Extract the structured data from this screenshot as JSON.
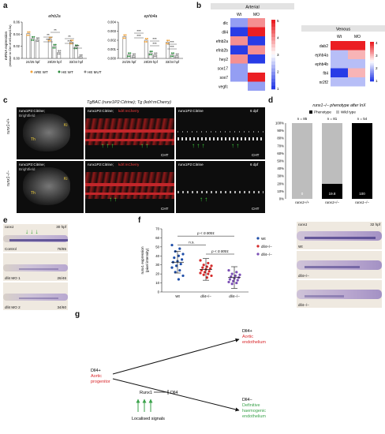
{
  "panels": {
    "a": "a",
    "b": "b",
    "c": "c",
    "d": "d",
    "e": "e",
    "f": "f",
    "g": "g"
  },
  "panel_a": {
    "y_label_line1": "mRNA expression",
    "y_label_line2": "(relative to Ctrl of ef1α/rpl13α)",
    "charts": [
      {
        "title": "efnb2a",
        "yticks": [
          "0.00",
          "0.02",
          "0.04",
          "0.06"
        ],
        "groups": [
          "24/25 hpf",
          "28/29 hpf",
          "33/34 hpf"
        ],
        "sig": [
          "**",
          "***",
          "**",
          "**",
          "***",
          "***"
        ]
      },
      {
        "title": "ephb4a",
        "yticks": [
          "0.000",
          "0.001",
          "0.002",
          "0.003",
          "0.004"
        ],
        "groups": [
          "24/25 hpf",
          "28/29 hpf",
          "33/34 hpf"
        ],
        "sig": [
          "***",
          "***",
          "***",
          "***",
          "***",
          "***"
        ]
      }
    ],
    "legend": [
      "ARE WT",
      "HE WT",
      "HE MUT"
    ],
    "colors": {
      "are": "#f2a33a",
      "he_wt": "#2e8b3e",
      "he_mut": "#8a8a8a"
    }
  },
  "panel_b": {
    "arterial_title": "Arterial",
    "venous_title": "Venous",
    "cols": [
      "Wt",
      "MO"
    ],
    "arterial_genes": [
      "dlc",
      "dll4",
      "efnb2a",
      "efnb2b",
      "hey2",
      "sox17",
      "sox7",
      "vegfc"
    ],
    "venous_genes": [
      "dab2",
      "ephb4a",
      "ephb4b",
      "flt4",
      "nr2f2"
    ],
    "arterial_scale": [
      "5",
      "4",
      "3",
      "2",
      "1"
    ],
    "venous_scale": [
      "4",
      "3",
      "2",
      "1"
    ]
  },
  "panel_c": {
    "title": "TgBAC (runx1P2:Citrine); Tg (kdrl:mCherry)",
    "row_labels": [
      "runx1+/+",
      "runx1−/−"
    ],
    "left_label_line1": "runx1P2:Citrine;",
    "left_label_line2": "Brightfield",
    "mid_label_1": "runx1P2:Citrine;",
    "mid_label_2": "kdrl:mCherry",
    "right_label": "runx1P2:Citrine",
    "age": "6 dpf",
    "cht": "CHT",
    "th": "Th",
    "ki": "Ki"
  },
  "panel_d": {
    "title": "runx1−/− phenotype after InX",
    "legend": [
      "Phenotype",
      "Wild type"
    ],
    "yticks": [
      "0%",
      "10%",
      "20%",
      "30%",
      "40%",
      "50%",
      "60%",
      "70%",
      "80%",
      "90%",
      "100%"
    ],
    "categories": [
      "runx1+/+",
      "runx1+/−",
      "runx1−/−"
    ],
    "n_labels": [
      "n = 85",
      "n = 81",
      "n = 54"
    ],
    "value_labels": [
      "0",
      "19.8",
      "100"
    ]
  },
  "panel_e": {
    "gene": "runx1",
    "age": "30 hpf",
    "rows": [
      {
        "label": "Control",
        "count": "78/85"
      },
      {
        "label": "dll4 MO 1",
        "count": "26/46"
      },
      {
        "label": "dll4 MO 2",
        "count": "34/60"
      }
    ]
  },
  "panel_f": {
    "ylabel_line1": "runx1 expression",
    "ylabel_line2": "(pixel intensity)",
    "yticks": [
      "0",
      "10",
      "20",
      "30",
      "40",
      "50",
      "60",
      "70"
    ],
    "categories": [
      "Wt",
      "dll4+/−",
      "dll4−/−"
    ],
    "legend": [
      "Wt",
      "dll4+/−",
      "dll4−/−"
    ],
    "p1": "p < 0.0001",
    "p2": "p < 0.0001",
    "ns": "n.s.",
    "colors": [
      "#1f4ea8",
      "#d42a2a",
      "#7b4fb5"
    ]
  },
  "panel_f_right": {
    "gene": "runx1",
    "age": "32 hpf",
    "labels": [
      "Wt",
      "dll4+/−",
      "dll4−/−"
    ]
  },
  "panel_g": {
    "start_line1": "Dll4+",
    "start_line2": "Aortic",
    "start_line3": "progenitor",
    "top_line1": "Dll4+",
    "top_line2": "Aortic",
    "top_line3": "endothelium",
    "bottom_line1": "Dll4−",
    "bottom_line2": "Definitive",
    "bottom_line3": "haemogenic",
    "bottom_line4": "endothelium",
    "runx1": "Runx1",
    "dll4": "Dll4",
    "signals": "Localised signals",
    "colors": {
      "red": "#d8262a",
      "green": "#3aa24a"
    }
  },
  "chart_data": [
    {
      "type": "bar",
      "title": "efnb2a",
      "categories": [
        "24/25 hpf",
        "28/29 hpf",
        "33/34 hpf"
      ],
      "series": [
        {
          "name": "ARE WT",
          "values": [
            0.041,
            0.032,
            0.027
          ]
        },
        {
          "name": "HE WT",
          "values": [
            0.033,
            0.02,
            0.019
          ]
        },
        {
          "name": "HE MUT",
          "values": [
            0.031,
            0.01,
            0.003
          ]
        }
      ],
      "ylim": [
        0,
        0.06
      ]
    },
    {
      "type": "bar",
      "title": "ephb4a",
      "categories": [
        "24/25 hpf",
        "28/29 hpf",
        "33/34 hpf"
      ],
      "series": [
        {
          "name": "ARE WT",
          "values": [
            0.0024,
            0.002,
            0.0018
          ]
        },
        {
          "name": "HE WT",
          "values": [
            0.0004,
            0.0006,
            0.0004
          ]
        },
        {
          "name": "HE MUT",
          "values": [
            0.0003,
            0.0004,
            0.0003
          ]
        }
      ],
      "ylim": [
        0,
        0.004
      ]
    },
    {
      "type": "heatmap",
      "title": "Arterial",
      "rows": [
        "dlc",
        "dll4",
        "efnb2a",
        "efnb2b",
        "hey2",
        "sox17",
        "sox7",
        "vegfc"
      ],
      "cols": [
        "Wt",
        "MO"
      ],
      "values": [
        [
          2,
          4
        ],
        [
          1,
          5
        ],
        [
          4,
          1
        ],
        [
          1,
          4
        ],
        [
          4,
          1
        ],
        [
          2,
          3
        ],
        [
          2,
          5
        ],
        [
          3,
          2
        ]
      ]
    },
    {
      "type": "heatmap",
      "title": "Venous",
      "rows": [
        "dab2",
        "ephb4a",
        "ephb4b",
        "flt4",
        "nr2f2"
      ],
      "cols": [
        "Wt",
        "MO"
      ],
      "values": [
        [
          4,
          4
        ],
        [
          2,
          3
        ],
        [
          2,
          2
        ],
        [
          1,
          3
        ],
        [
          2,
          2
        ]
      ]
    },
    {
      "type": "bar",
      "title": "runx1−/− phenotype after InX",
      "categories": [
        "runx1+/+",
        "runx1+/−",
        "runx1−/−"
      ],
      "series": [
        {
          "name": "Phenotype",
          "values": [
            0,
            19.8,
            100
          ]
        },
        {
          "name": "Wild type",
          "values": [
            100,
            80.2,
            0
          ]
        }
      ],
      "ylim": [
        0,
        100
      ]
    },
    {
      "type": "scatter",
      "categories": [
        "Wt",
        "dll4+/−",
        "dll4−/−"
      ],
      "series": [
        {
          "name": "Wt",
          "values": [
            52,
            48,
            45,
            42,
            40,
            38,
            36,
            34,
            33,
            31,
            29,
            27,
            24,
            22,
            18,
            14
          ]
        },
        {
          "name": "dll4+/−",
          "values": [
            35,
            32,
            30,
            29,
            28,
            27,
            26,
            25,
            24,
            23,
            22,
            21,
            20,
            19,
            18,
            16
          ]
        },
        {
          "name": "dll4−/−",
          "values": [
            24,
            22,
            20,
            19,
            18,
            17,
            16,
            15,
            14,
            13,
            12,
            11,
            10,
            9
          ]
        }
      ],
      "means": [
        33,
        25,
        16
      ],
      "ylim": [
        0,
        70
      ]
    }
  ]
}
